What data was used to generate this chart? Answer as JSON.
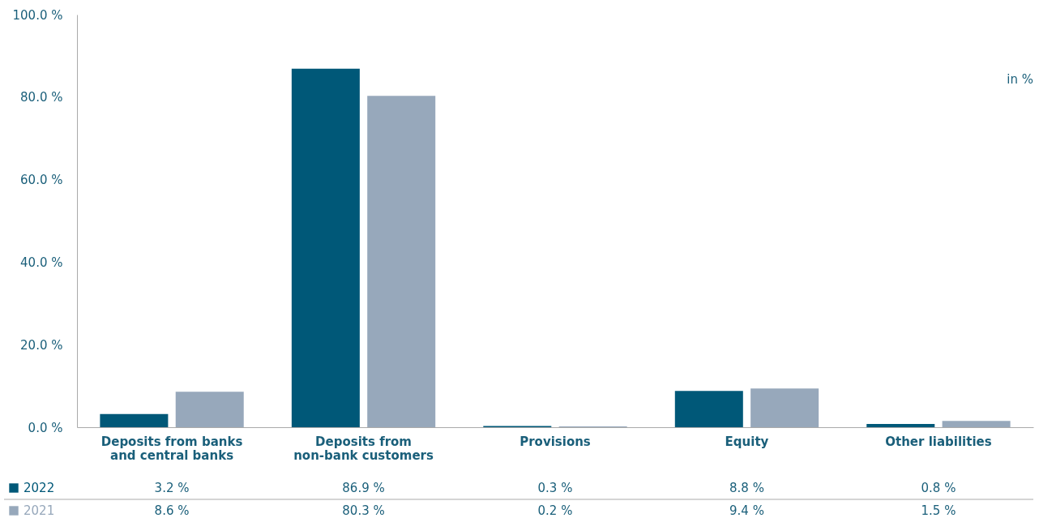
{
  "chart_data": {
    "type": "bar",
    "categories": [
      "Deposits from banks\nand central banks",
      "Deposits from\nnon-bank customers",
      "Provisions",
      "Equity",
      "Other liabilities"
    ],
    "series": [
      {
        "name": "2022",
        "color": "#005878",
        "values": [
          3.2,
          86.9,
          0.3,
          8.8,
          0.8
        ],
        "value_labels": [
          "3.2 %",
          "86.9 %",
          "0.3 %",
          "8.8 %",
          "0.8 %"
        ]
      },
      {
        "name": "2021",
        "color": "#97a8bb",
        "values": [
          8.6,
          80.3,
          0.2,
          9.4,
          1.5
        ],
        "value_labels": [
          "8.6 %",
          "80.3 %",
          "0.2 %",
          "9.4 %",
          "1.5 %"
        ]
      }
    ],
    "ylim": [
      0,
      100
    ],
    "yticks": [
      {
        "value": 0,
        "label": "0.0 %"
      },
      {
        "value": 20,
        "label": "20.0 %"
      },
      {
        "value": 40,
        "label": "40.0 %"
      },
      {
        "value": 60,
        "label": "60.0 %"
      },
      {
        "value": 80,
        "label": "80.0 %"
      },
      {
        "value": 100,
        "label": "100.0 %"
      }
    ],
    "annotations": [
      "in %"
    ],
    "grid": false,
    "legend": "bottom left"
  }
}
